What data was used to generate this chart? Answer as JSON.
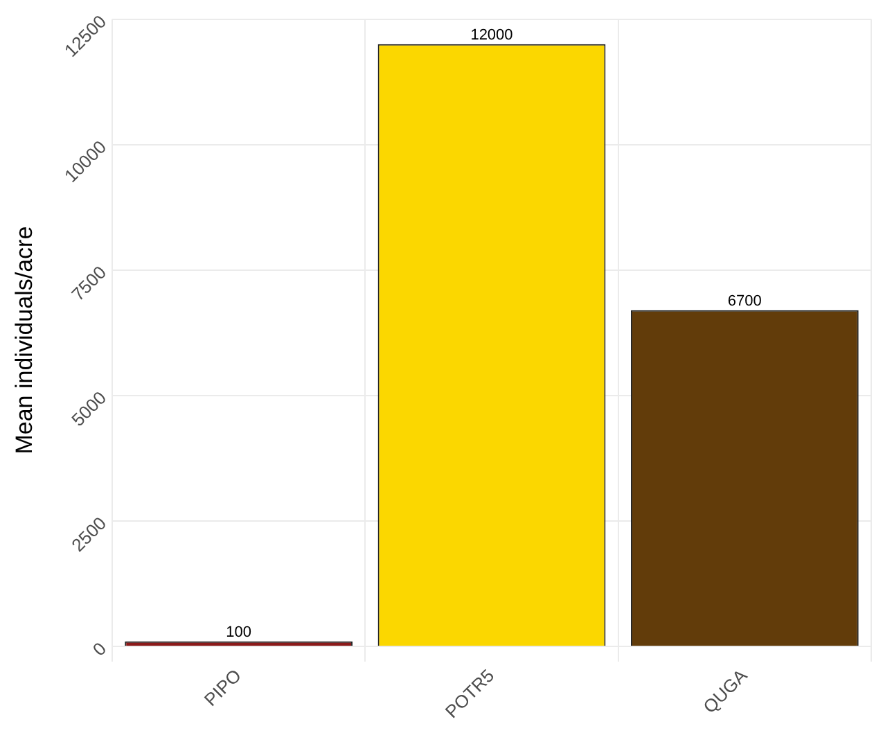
{
  "chart_data": {
    "type": "bar",
    "ylabel": "Mean individuals/acre",
    "categories": [
      "PIPO",
      "POTR5",
      "QUGA"
    ],
    "values": [
      100,
      12000,
      6700
    ],
    "colors": [
      "#8b1a1a",
      "#fbd700",
      "#623c0a"
    ],
    "ylim": [
      -300,
      12500
    ],
    "yticks": [
      0,
      2500,
      5000,
      7500,
      10000,
      12500
    ],
    "grid": true,
    "data_labels": true,
    "legend": false
  }
}
